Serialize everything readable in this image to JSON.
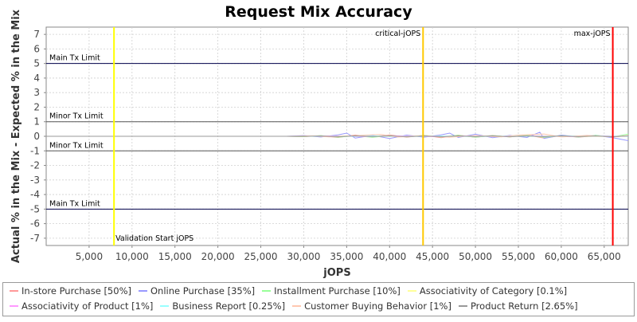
{
  "chart_data": {
    "type": "line",
    "title": "Request Mix Accuracy",
    "xlabel": "jOPS",
    "ylabel": "Actual % in the Mix - Expected % in the Mix",
    "xlim": [
      0,
      67800
    ],
    "ylim": [
      -7.5,
      7.5
    ],
    "x_ticks": [
      5000,
      10000,
      15000,
      20000,
      25000,
      30000,
      35000,
      40000,
      45000,
      50000,
      55000,
      60000,
      65000
    ],
    "x_tick_labels": [
      "5,000",
      "10,000",
      "15,000",
      "20,000",
      "25,000",
      "30,000",
      "35,000",
      "40,000",
      "45,000",
      "50,000",
      "55,000",
      "60,000",
      "65,000"
    ],
    "y_ticks": [
      7,
      6,
      5,
      4,
      3,
      2,
      1,
      0,
      -1,
      -2,
      -3,
      -4,
      -5,
      -6,
      -7
    ],
    "y_tick_labels": [
      "7",
      "6",
      "5",
      "4",
      "3",
      "2",
      "1",
      "0",
      "-1",
      "-2",
      "-3",
      "-4",
      "-5",
      "-6",
      "-7"
    ],
    "grid": true,
    "legend_placement": "bottom",
    "horizontal_limits": [
      {
        "y": 5,
        "label": "Main Tx Limit",
        "label_side": "above"
      },
      {
        "y": 1,
        "label": "Minor Tx Limit",
        "label_side": "above"
      },
      {
        "y": -1,
        "label": "Minor Tx Limit",
        "label_side": "above"
      },
      {
        "y": -5,
        "label": "Main Tx Limit",
        "label_side": "above"
      }
    ],
    "vertical_markers": [
      {
        "x": 7900,
        "label": "Validation Start jOPS",
        "color": "#ffff00",
        "label_position": "bottom"
      },
      {
        "x": 43900,
        "label": "critical-jOPS",
        "color": "#ffc800",
        "label_position": "top"
      },
      {
        "x": 66000,
        "label": "max-jOPS",
        "color": "#ff0000",
        "label_position": "top"
      }
    ],
    "series": [
      {
        "name": "In-store Purchase [50%]",
        "color": "#ff9999",
        "points": [
          [
            0,
            0
          ],
          [
            28000,
            0
          ],
          [
            30000,
            -0.03
          ],
          [
            32000,
            0.04
          ],
          [
            34000,
            -0.08
          ],
          [
            36000,
            0.09
          ],
          [
            38000,
            -0.05
          ],
          [
            40000,
            0.1
          ],
          [
            42000,
            -0.06
          ],
          [
            44000,
            0.07
          ],
          [
            46000,
            -0.1
          ],
          [
            48000,
            0.08
          ],
          [
            50000,
            -0.07
          ],
          [
            52000,
            0.06
          ],
          [
            54000,
            -0.05
          ],
          [
            56000,
            0.09
          ],
          [
            58000,
            -0.12
          ],
          [
            60000,
            0.05
          ],
          [
            62000,
            -0.06
          ],
          [
            64000,
            0.04
          ],
          [
            66000,
            -0.05
          ],
          [
            67800,
            0.05
          ]
        ]
      },
      {
        "name": "Online Purchase [35%]",
        "color": "#9999ff",
        "points": [
          [
            0,
            0
          ],
          [
            28000,
            0
          ],
          [
            30000,
            0.05
          ],
          [
            32000,
            -0.05
          ],
          [
            34000,
            0.1
          ],
          [
            35000,
            0.22
          ],
          [
            36000,
            -0.12
          ],
          [
            38000,
            0.06
          ],
          [
            40000,
            -0.15
          ],
          [
            42000,
            0.08
          ],
          [
            44000,
            -0.06
          ],
          [
            46000,
            0.1
          ],
          [
            47000,
            0.22
          ],
          [
            48000,
            -0.08
          ],
          [
            50000,
            0.14
          ],
          [
            52000,
            -0.1
          ],
          [
            54000,
            0.06
          ],
          [
            56000,
            -0.08
          ],
          [
            57500,
            0.28
          ],
          [
            58000,
            -0.15
          ],
          [
            60000,
            0.08
          ],
          [
            62000,
            -0.05
          ],
          [
            64000,
            0.07
          ],
          [
            66000,
            -0.1
          ],
          [
            67800,
            -0.3
          ]
        ]
      },
      {
        "name": "Installment Purchase [10%]",
        "color": "#99ff99",
        "points": [
          [
            0,
            0
          ],
          [
            28000,
            0
          ],
          [
            30000,
            -0.02
          ],
          [
            32000,
            0.05
          ],
          [
            34000,
            -0.06
          ],
          [
            36000,
            0.04
          ],
          [
            38000,
            -0.07
          ],
          [
            40000,
            0.05
          ],
          [
            42000,
            -0.04
          ],
          [
            44000,
            0.06
          ],
          [
            46000,
            -0.05
          ],
          [
            48000,
            0.07
          ],
          [
            50000,
            -0.06
          ],
          [
            52000,
            0.05
          ],
          [
            54000,
            -0.04
          ],
          [
            56000,
            0.06
          ],
          [
            58000,
            -0.07
          ],
          [
            60000,
            0.04
          ],
          [
            62000,
            -0.05
          ],
          [
            64000,
            0.06
          ],
          [
            66000,
            -0.04
          ],
          [
            67800,
            0.15
          ]
        ]
      },
      {
        "name": "Associativity of Category [0.1%]",
        "color": "#ffff99",
        "points": [
          [
            0,
            0
          ],
          [
            30000,
            0
          ],
          [
            34000,
            0.01
          ],
          [
            38000,
            -0.01
          ],
          [
            42000,
            0.01
          ],
          [
            46000,
            -0.01
          ],
          [
            50000,
            0.01
          ],
          [
            54000,
            -0.01
          ],
          [
            58000,
            0.01
          ],
          [
            62000,
            -0.01
          ],
          [
            67800,
            0
          ]
        ]
      },
      {
        "name": "Associativity of Product [1%]",
        "color": "#ff99ff",
        "points": [
          [
            0,
            0
          ],
          [
            30000,
            0
          ],
          [
            33000,
            0.02
          ],
          [
            37000,
            -0.02
          ],
          [
            41000,
            0.03
          ],
          [
            45000,
            -0.02
          ],
          [
            49000,
            0.02
          ],
          [
            53000,
            -0.03
          ],
          [
            57000,
            0.02
          ],
          [
            61000,
            -0.02
          ],
          [
            65000,
            0.02
          ],
          [
            67800,
            0
          ]
        ]
      },
      {
        "name": "Business Report [0.25%]",
        "color": "#99ffff",
        "points": [
          [
            0,
            0
          ],
          [
            30000,
            0
          ],
          [
            34000,
            -0.01
          ],
          [
            38000,
            0.02
          ],
          [
            42000,
            -0.01
          ],
          [
            46000,
            0.01
          ],
          [
            50000,
            -0.02
          ],
          [
            54000,
            0.01
          ],
          [
            58000,
            -0.01
          ],
          [
            62000,
            0.02
          ],
          [
            67800,
            0
          ]
        ]
      },
      {
        "name": "Customer Buying Behavior [1%]",
        "color": "#ffc8b0",
        "points": [
          [
            0,
            0
          ],
          [
            28000,
            0
          ],
          [
            31000,
            0.03
          ],
          [
            33000,
            -0.04
          ],
          [
            36000,
            0.05
          ],
          [
            39000,
            0.12
          ],
          [
            41000,
            -0.05
          ],
          [
            44000,
            0.04
          ],
          [
            47000,
            -0.06
          ],
          [
            50000,
            0.05
          ],
          [
            53000,
            -0.04
          ],
          [
            55000,
            0.08
          ],
          [
            58000,
            0.16
          ],
          [
            60000,
            -0.05
          ],
          [
            63000,
            0.06
          ],
          [
            66000,
            -0.04
          ],
          [
            67800,
            0.05
          ]
        ]
      },
      {
        "name": "Product Return [2.65%]",
        "color": "#999999",
        "points": [
          [
            0,
            0
          ],
          [
            30000,
            0
          ],
          [
            32000,
            0.02
          ],
          [
            34000,
            -0.03
          ],
          [
            36000,
            0.03
          ],
          [
            38000,
            -0.02
          ],
          [
            40000,
            0.03
          ],
          [
            42000,
            -0.03
          ],
          [
            44000,
            0.02
          ],
          [
            46000,
            -0.03
          ],
          [
            48000,
            0.03
          ],
          [
            50000,
            -0.02
          ],
          [
            52000,
            0.03
          ],
          [
            54000,
            -0.03
          ],
          [
            56000,
            0.02
          ],
          [
            58000,
            -0.02
          ],
          [
            60000,
            0.03
          ],
          [
            62000,
            -0.02
          ],
          [
            64000,
            0.02
          ],
          [
            66000,
            -0.03
          ],
          [
            67800,
            0.02
          ]
        ]
      }
    ]
  }
}
